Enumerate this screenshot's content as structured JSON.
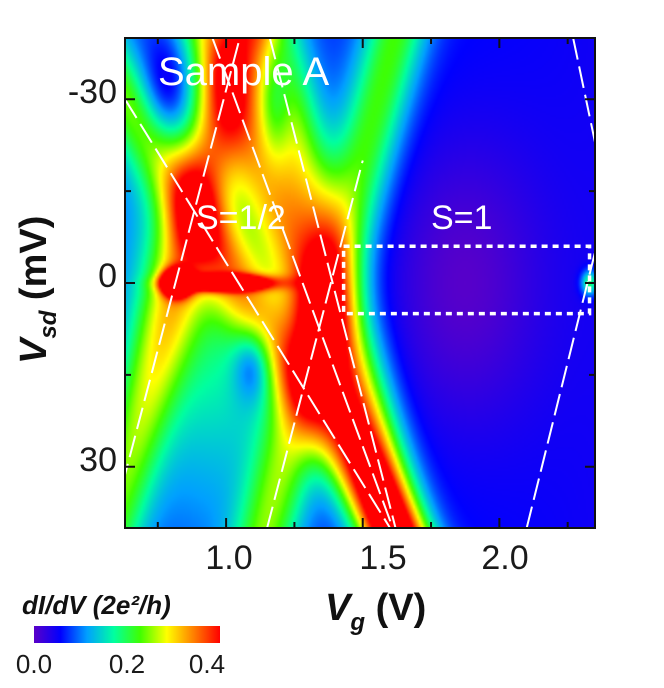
{
  "chart_data": {
    "type": "heatmap",
    "x_label": "V",
    "x_label_sub": "g",
    "x_label_unit": " (V)",
    "y_label": "V",
    "y_label_sub": "sd",
    "y_label_unit": " (mV)",
    "xlim": [
      0.63,
      2.35
    ],
    "ylim": [
      -40,
      40
    ],
    "y_inverted": true,
    "x_ticks": [
      {
        "value": 1.0,
        "label": "1.0"
      },
      {
        "value": 1.5,
        "label": "1.5"
      },
      {
        "value": 2.0,
        "label": "2.0"
      }
    ],
    "x_minor_ticks": [
      0.75,
      1.25,
      1.75,
      2.25
    ],
    "y_ticks": [
      {
        "value": -30,
        "label": "-30"
      },
      {
        "value": 0,
        "label": "0"
      },
      {
        "value": 30,
        "label": "30"
      }
    ],
    "y_minor_ticks": [
      -15,
      15
    ],
    "annotations": [
      {
        "text": "Sample A",
        "x": 1.05,
        "y": -33
      },
      {
        "text": "S=1/2",
        "x": 1.06,
        "y": 9
      },
      {
        "text": "S=1",
        "x": 1.87,
        "y": 9
      }
    ],
    "highlight_box": {
      "x0": 1.43,
      "x1": 2.33,
      "y0": -6,
      "y1": 5,
      "style": "white dotted"
    },
    "diamond_edges": [
      {
        "x0": 0.63,
        "y0": -30,
        "x1": 1.6,
        "y1": 40
      },
      {
        "x0": 0.62,
        "y0": 33,
        "x1": 1.05,
        "y1": -40
      },
      {
        "x0": 0.95,
        "y0": -40,
        "x1": 1.61,
        "y1": 40
      },
      {
        "x0": 1.15,
        "y0": 40,
        "x1": 1.5,
        "y1": -20
      },
      {
        "x0": 1.16,
        "y0": -40,
        "x1": 1.62,
        "y1": 40
      },
      {
        "x0": 2.1,
        "y0": 40,
        "x1": 2.35,
        "y1": -5
      },
      {
        "x0": 2.27,
        "y0": -40,
        "x1": 2.35,
        "y1": -23
      }
    ],
    "peaks": [
      {
        "x": 0.82,
        "y": 0,
        "value": 0.45,
        "sx": 0.05,
        "sy": 2.0
      },
      {
        "x": 1.0,
        "y": 0,
        "value": 0.36,
        "sx": 0.16,
        "sy": 1.2
      },
      {
        "x": 1.33,
        "y": 0,
        "value": 0.31,
        "sx": 0.03,
        "sy": 1.3
      },
      {
        "x": 2.33,
        "y": 0,
        "value": 0.15,
        "sx": 0.03,
        "sy": 2.0
      }
    ],
    "colorbar": {
      "title": "dI/dV (2e²/h)",
      "min": 0.0,
      "max": 0.4,
      "ticks": [
        "0.0",
        "0.2",
        "0.4"
      ],
      "colors": [
        "#5a00c8",
        "#0000ff",
        "#00a0ff",
        "#00ffa0",
        "#40ff00",
        "#ffff00",
        "#ff8000",
        "#ff0000"
      ]
    }
  }
}
